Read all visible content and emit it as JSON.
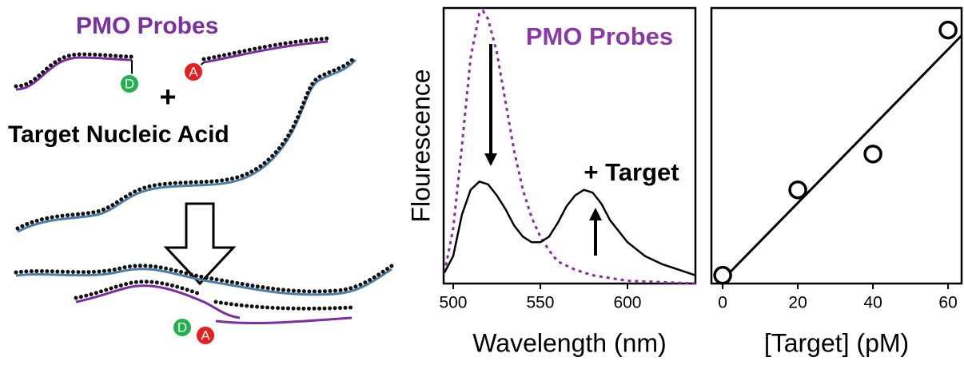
{
  "schematic": {
    "probe_label": "PMO Probes",
    "donor": "D",
    "acceptor": "A",
    "plus": "+",
    "target_label": "Target Nucleic Acid",
    "donor_bound": "D",
    "acceptor_bound": "A"
  },
  "chart_data": [
    {
      "type": "line",
      "xlabel": "Wavelength (nm)",
      "ylabel": "Flourescence",
      "xlim": [
        494.5,
        639
      ],
      "ylim": [
        0,
        1
      ],
      "xticks": [
        500,
        550,
        600
      ],
      "annotations": [
        {
          "text": "PMO Probes",
          "color": "#8a3aa8"
        },
        {
          "text": "+ Target",
          "color": "#000000"
        }
      ],
      "series": [
        {
          "color": "#8b2a9e",
          "dash": true,
          "x": [
            495,
            500,
            505,
            510,
            515,
            517,
            520,
            525,
            530,
            535,
            540,
            545,
            550,
            555,
            560,
            570,
            580,
            600,
            620,
            639
          ],
          "values": [
            0.04,
            0.2,
            0.5,
            0.82,
            0.98,
            0.99,
            0.96,
            0.84,
            0.66,
            0.48,
            0.34,
            0.24,
            0.17,
            0.12,
            0.08,
            0.05,
            0.03,
            0.01,
            0.005,
            0
          ]
        },
        {
          "color": "#000000",
          "dash": false,
          "x": [
            495,
            500,
            505,
            510,
            515,
            520,
            525,
            530,
            535,
            540,
            545,
            550,
            555,
            560,
            565,
            570,
            575,
            580,
            585,
            590,
            600,
            610,
            620,
            639
          ],
          "values": [
            0.04,
            0.1,
            0.25,
            0.34,
            0.37,
            0.36,
            0.32,
            0.27,
            0.21,
            0.17,
            0.15,
            0.15,
            0.17,
            0.22,
            0.28,
            0.32,
            0.34,
            0.33,
            0.29,
            0.23,
            0.15,
            0.1,
            0.07,
            0.03
          ]
        }
      ]
    },
    {
      "type": "scatter",
      "xlabel": "[Target] (pM)",
      "xlim": [
        -3,
        63.6
      ],
      "ylim": [
        0,
        1
      ],
      "xticks": [
        0,
        20,
        40,
        60
      ],
      "x": [
        0,
        20,
        40,
        60
      ],
      "values": [
        0.03,
        0.34,
        0.47,
        0.92
      ],
      "color": "#000000",
      "fit": {
        "x": [
          -1,
          63.6
        ],
        "values": [
          0,
          0.9
        ]
      }
    }
  ]
}
